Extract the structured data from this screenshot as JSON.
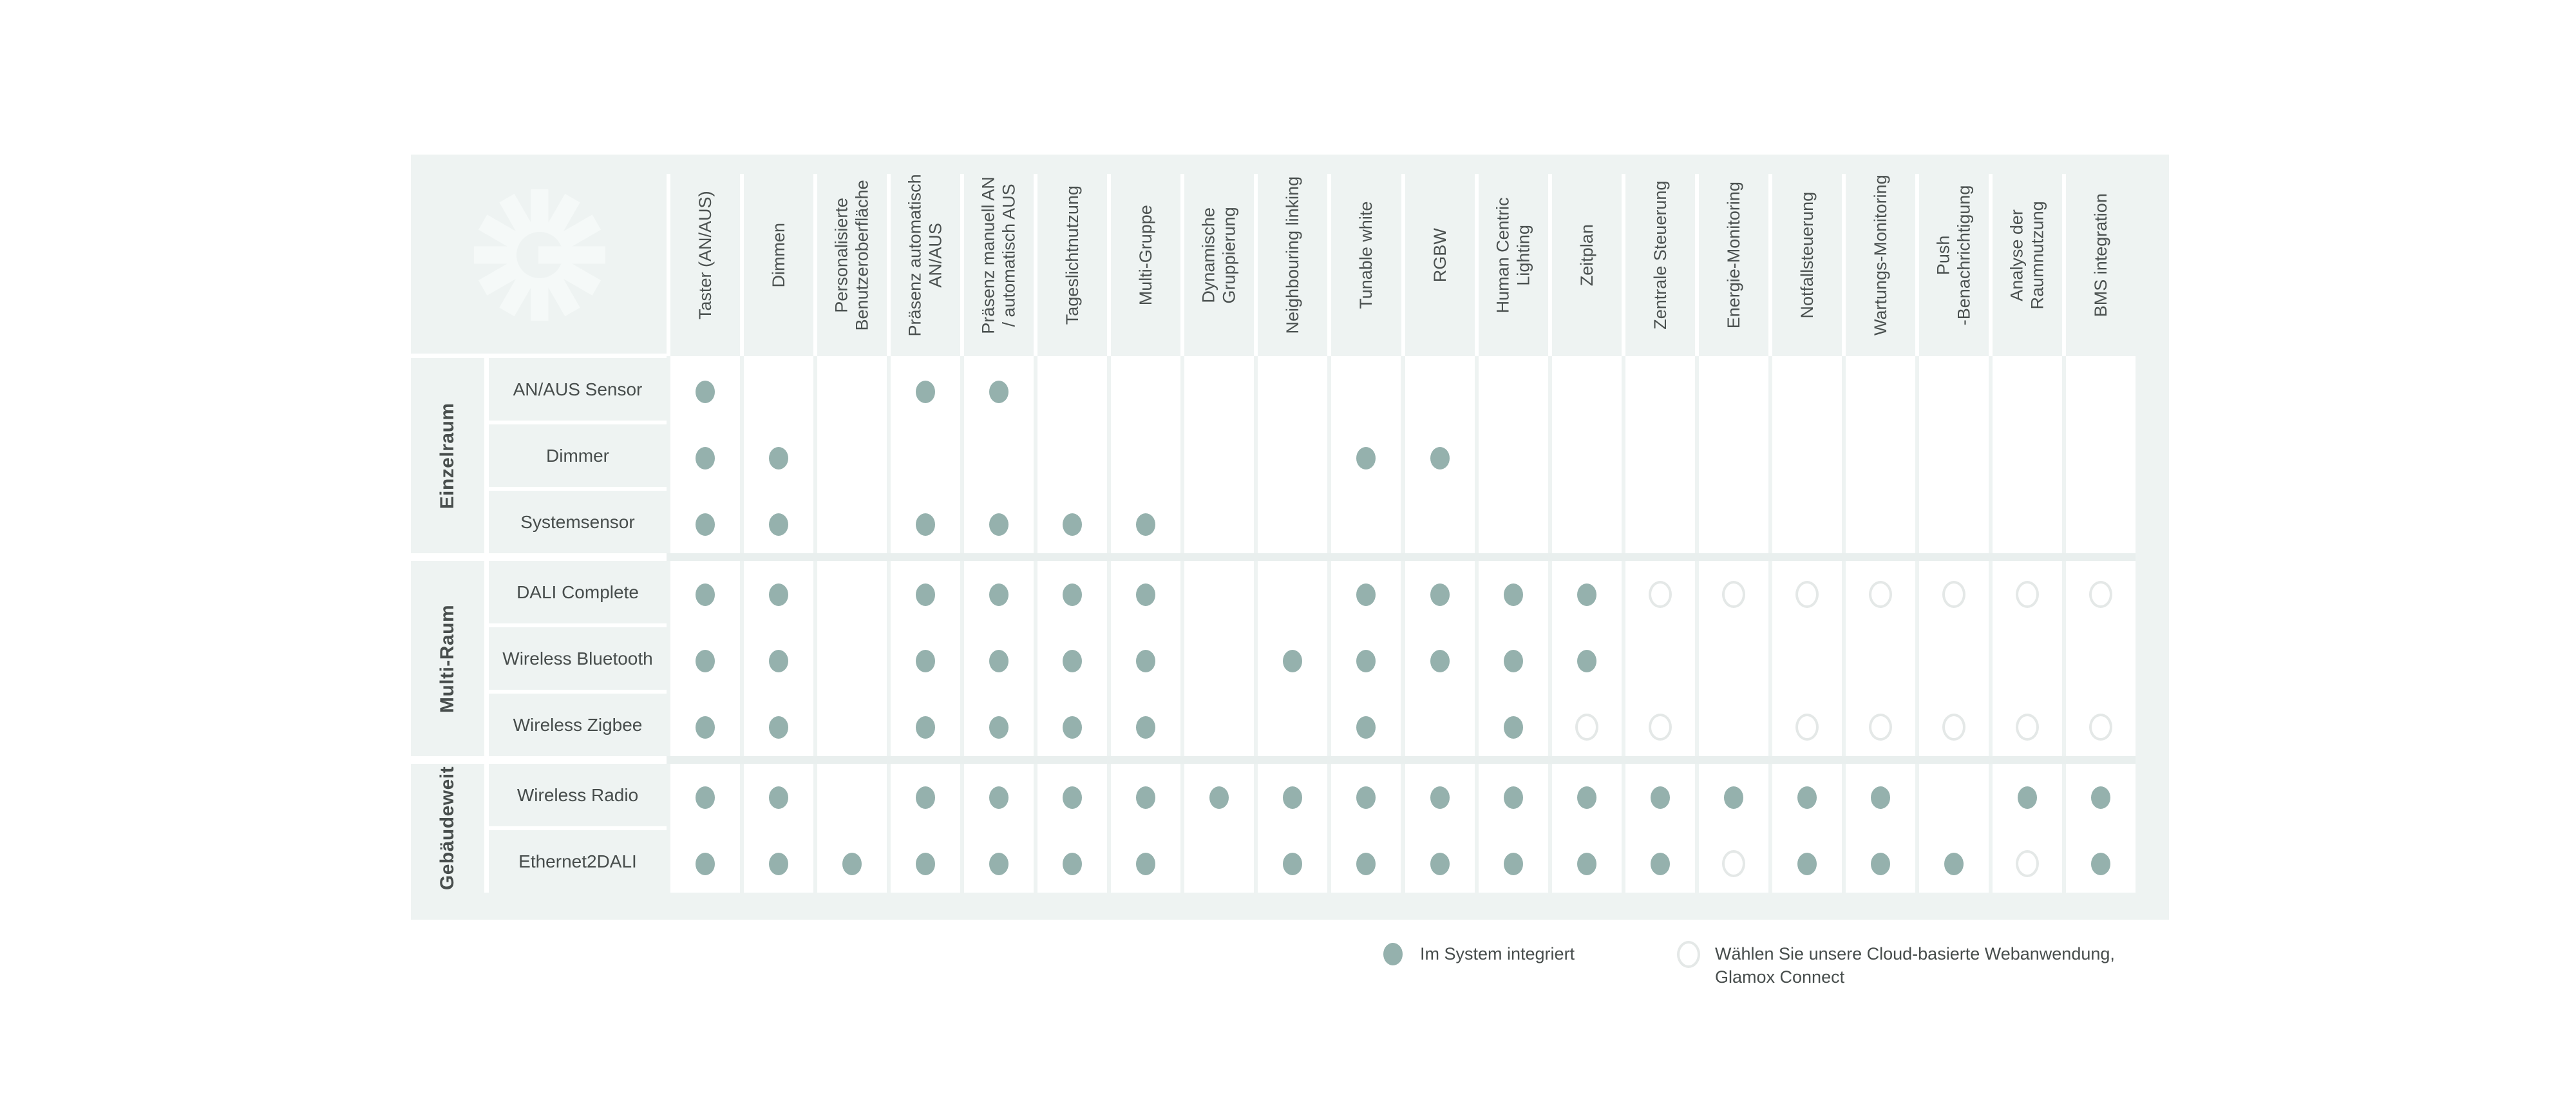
{
  "table": {
    "columns": [
      "Taster (AN/AUS)",
      "Dimmen",
      "Personalisierte\nBenutzeroberfläche",
      "Präsenz automatisch\nAN/AUS",
      "Präsenz manuell AN\n/ automatisch AUS",
      "Tageslichtnutzung",
      "Multi-Gruppe",
      "Dynamische\nGruppierung",
      "Neighbouring linking",
      "Tunable white",
      "RGBW",
      "Human Centric\nLighting",
      "Zeitplan",
      "Zentrale Steuerung",
      "Energie-Monitoring",
      "Notfallsteuerung",
      "Wartungs-Monitoring",
      "Push\n-Benachrichtigung",
      "Analyse der\nRaumnutzung",
      "BMS integration"
    ],
    "groups": [
      {
        "label": "Einzelraum",
        "rows": [
          {
            "label": "AN/AUS Sensor",
            "cells": "20022000000000000000"
          },
          {
            "label": "Dimmer",
            "cells": "22000000022000000000"
          },
          {
            "label": "Systemsensor",
            "cells": "22022220000000000000"
          }
        ]
      },
      {
        "label": "Multi-Raum",
        "rows": [
          {
            "label": "DALI Complete",
            "cells": "22022220022221111111"
          },
          {
            "label": "Wireless Bluetooth",
            "cells": "22022220222220000000"
          },
          {
            "label": "Wireless Zigbee",
            "cells": "22022220020211011111"
          }
        ]
      },
      {
        "label": "Gebäudeweit",
        "rows": [
          {
            "label": "Wireless Radio",
            "cells": "22022222222222222022"
          },
          {
            "label": "Ethernet2DALI",
            "cells": "22222220222222122212"
          }
        ]
      }
    ],
    "legend": [
      {
        "type": "filled",
        "label": "Im System integriert"
      },
      {
        "type": "outline",
        "label": "Wählen Sie unsere Cloud-basierte Webanwendung,\nGlamox Connect"
      }
    ]
  },
  "cell_states": {
    "0": "empty",
    "1": "cloud-webapp",
    "2": "integrated"
  },
  "colors": {
    "panel": "#eef3f2",
    "dot_filled": "#95b1ad",
    "ring_outline": "#e4e8e7",
    "logo": "#f5f9f8",
    "text": "#474d4c"
  },
  "logo": {
    "name": "glamox-starburst-logo"
  }
}
